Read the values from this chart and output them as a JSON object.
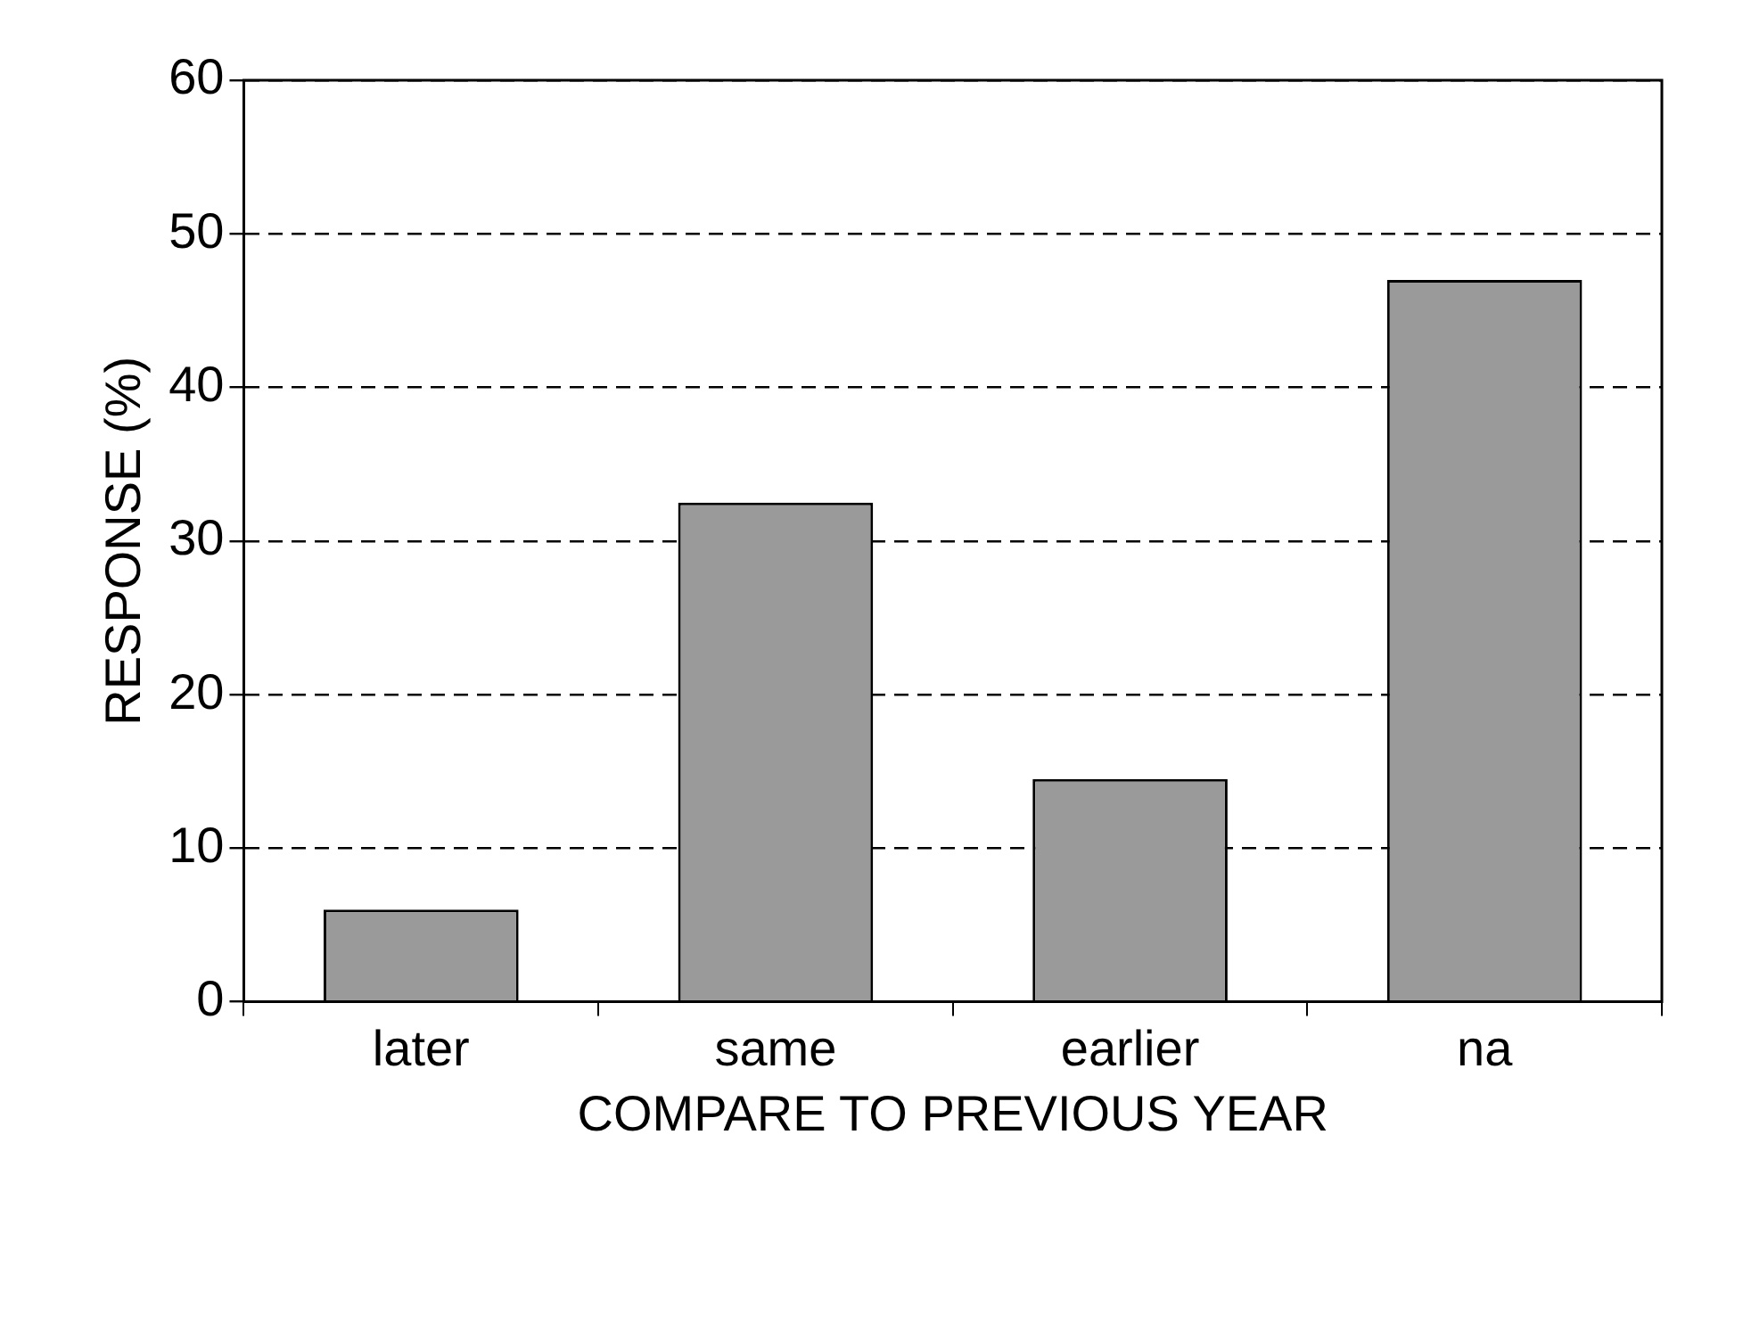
{
  "chart_data": {
    "type": "bar",
    "xlabel": "COMPARE TO PREVIOUS YEAR",
    "ylabel": "RESPONSE (%)",
    "categories": [
      "later",
      "same",
      "earlier",
      "na"
    ],
    "values": [
      6,
      32.5,
      14.5,
      47
    ],
    "color": "#9a9a9a",
    "ylim": [
      0,
      60
    ],
    "yticks": [
      0,
      10,
      20,
      30,
      40,
      50,
      60
    ],
    "grid": "y",
    "line_style": "dashed"
  }
}
